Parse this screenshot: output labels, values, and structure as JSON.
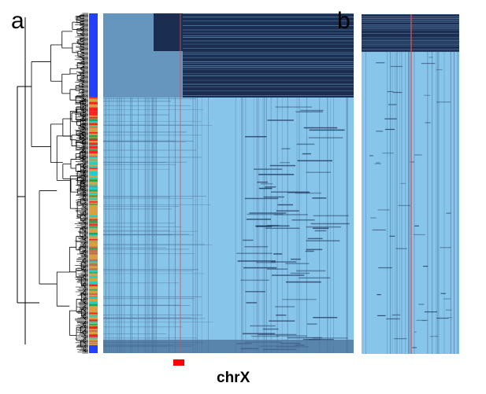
{
  "panels": {
    "a": {
      "label": "a"
    },
    "b": {
      "label": "b"
    }
  },
  "annotation": {
    "chromosome_label": "chrX",
    "marker_color": "#ff0000"
  },
  "colors": {
    "heatmap_low": "#87c5ea",
    "heatmap_high": "#1b2e52",
    "heatmap_mid": "#4a6d97",
    "chrX_line": "#d9534f",
    "cluster_blue": "#2340ff",
    "cluster_orange": "#d9a040",
    "cluster_red": "#ff2020",
    "cluster_cyan": "#20d0c8",
    "cluster_green": "#30a050"
  },
  "figure": {
    "type": "heatmap",
    "has_dendrogram": true
  }
}
